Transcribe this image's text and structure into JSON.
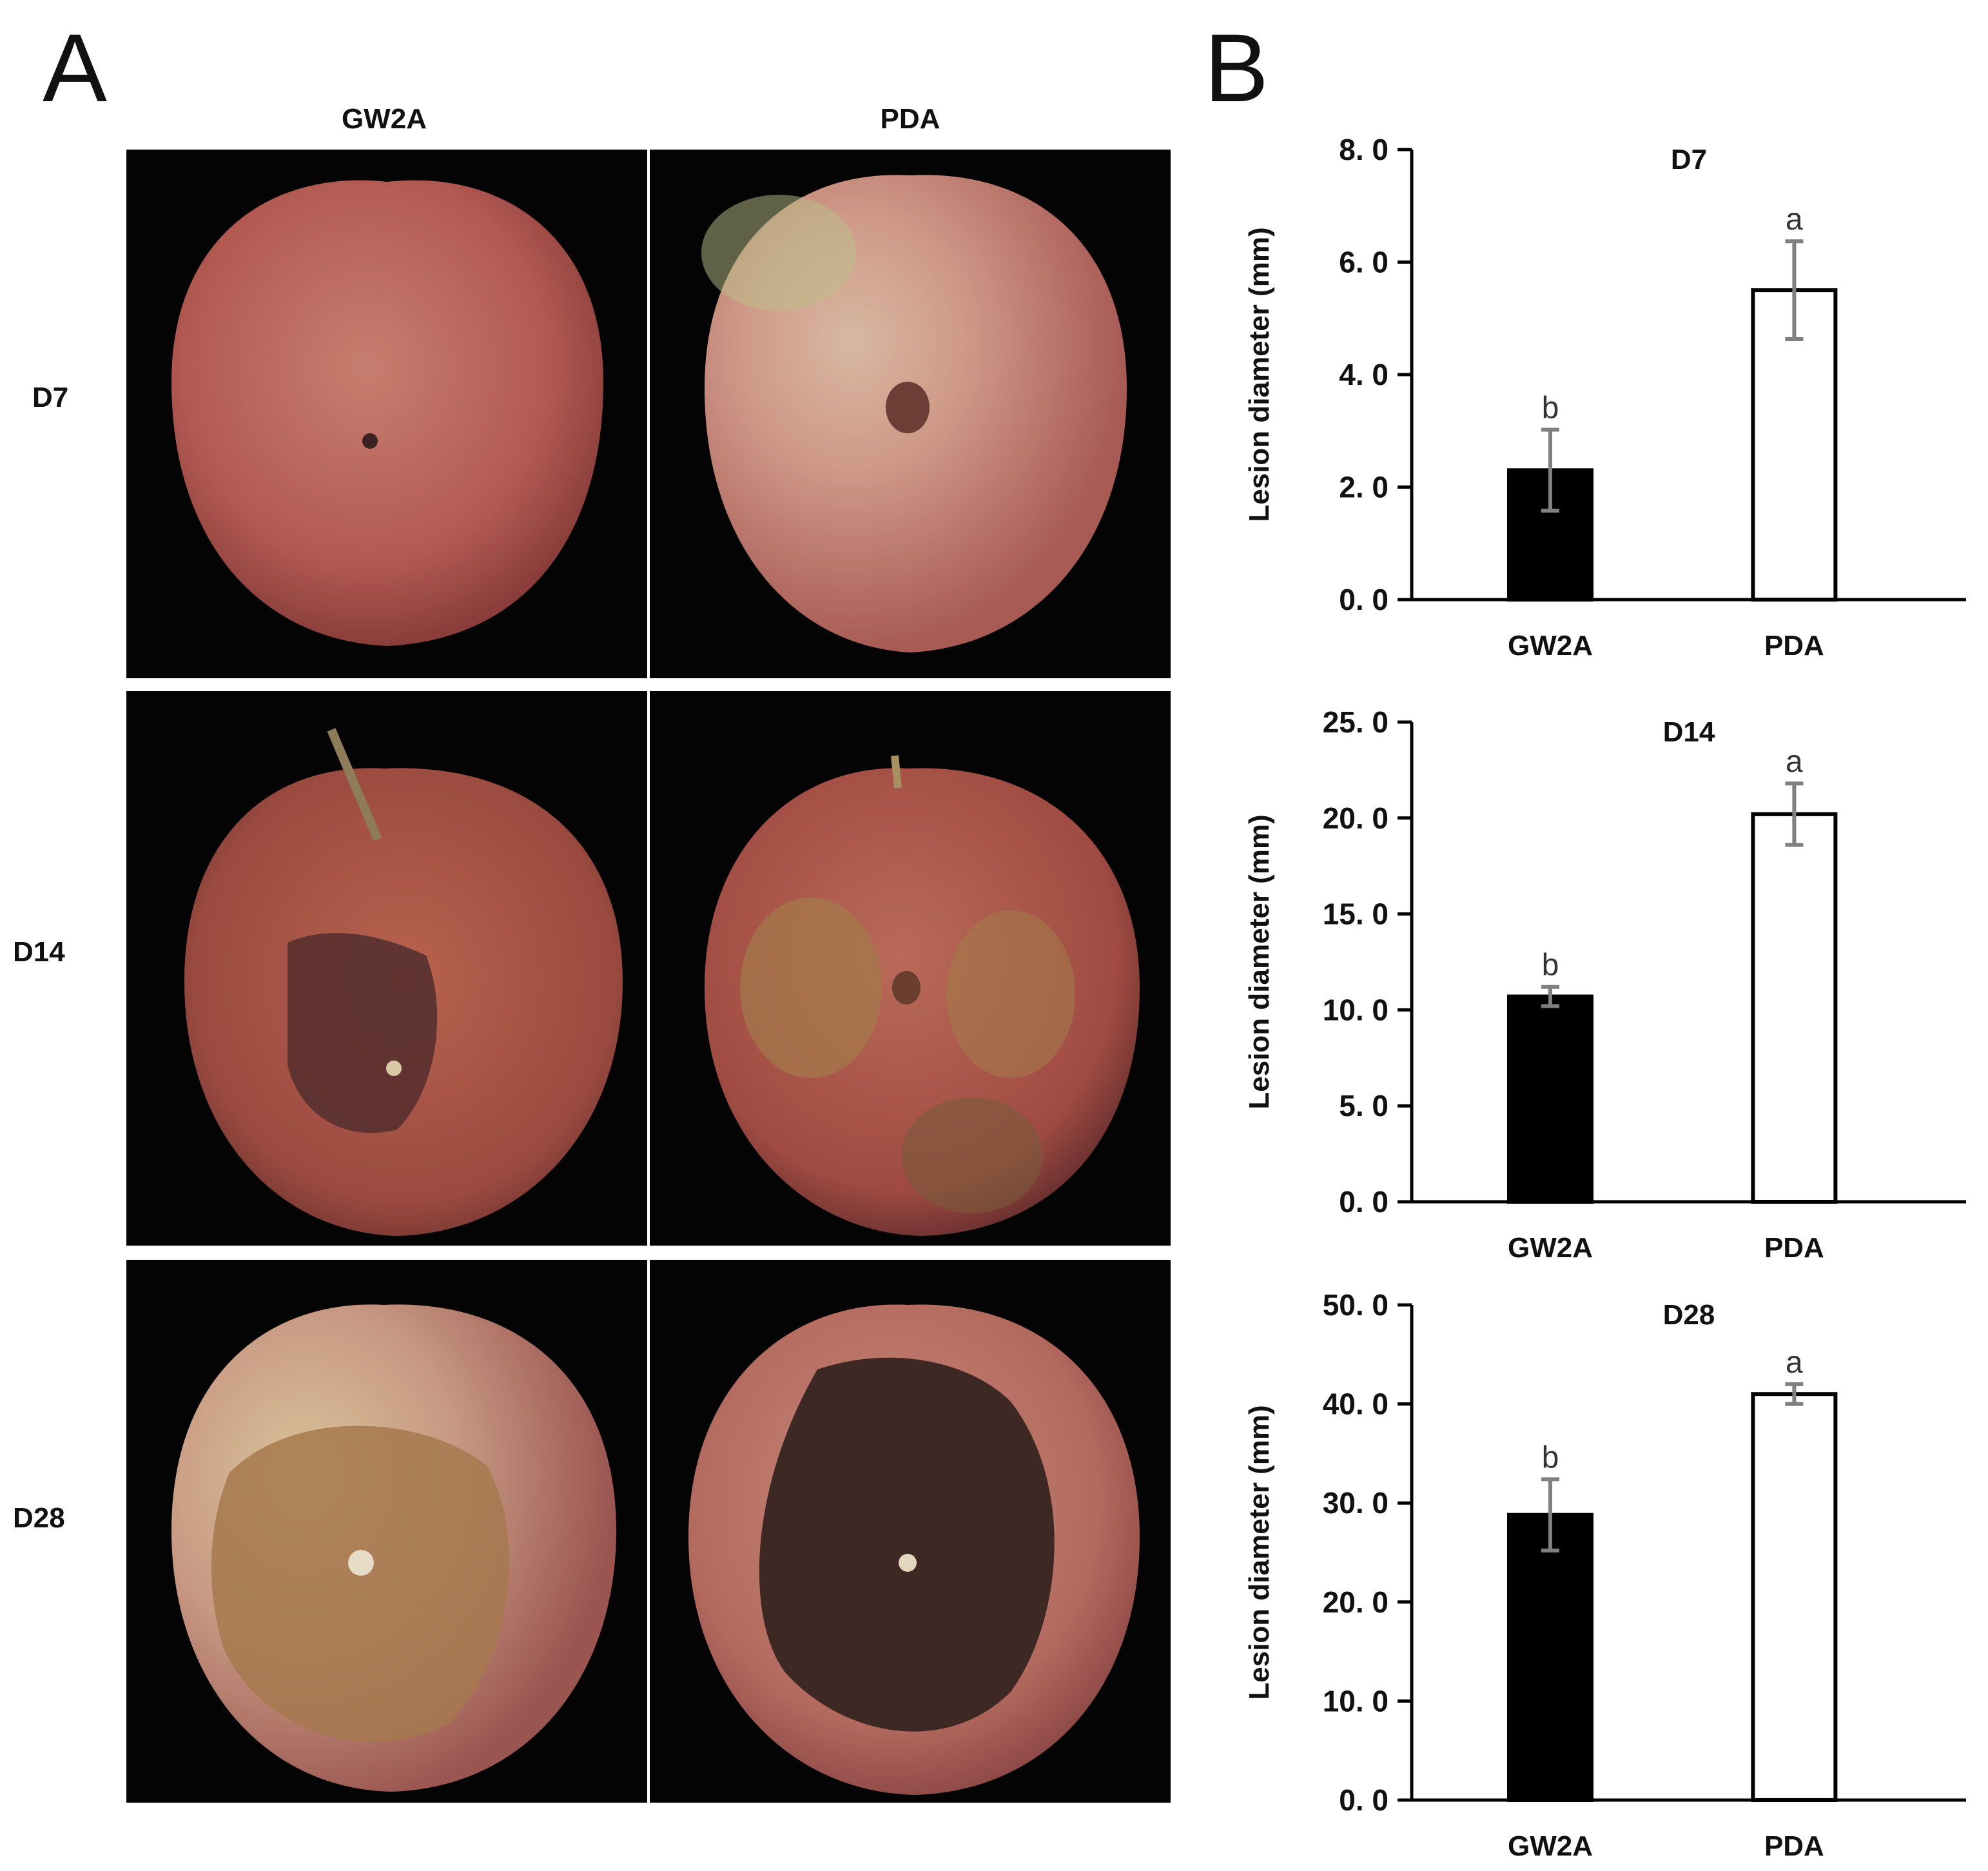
{
  "panels": {
    "a": "A",
    "b": "B"
  },
  "photo_grid": {
    "columns": [
      "GW2A",
      "PDA"
    ],
    "rows": [
      "D7",
      "D14",
      "D28"
    ]
  },
  "colors": {
    "background": "#ffffff",
    "photo_background": "#040404",
    "apple_red": "#b8554f",
    "apple_yellow": "#cfc08a",
    "lesion_light": "#8f6a48",
    "lesion_dark": "#3e2824",
    "bar_gw2a": "#000000",
    "bar_pda": "#ffffff",
    "error_bar": "#808080"
  },
  "chart_data": [
    {
      "type": "bar",
      "title": "D7",
      "ylabel": "Lesion diameter (mm)",
      "categories": [
        "GW2A",
        "PDA"
      ],
      "values": [
        2.3,
        5.5
      ],
      "errors": [
        0.72,
        0.87
      ],
      "significance": [
        "b",
        "a"
      ],
      "ylim": [
        0,
        8
      ],
      "yticks": [
        "0. 0",
        "2. 0",
        "4. 0",
        "6. 0",
        "8. 0"
      ],
      "ytick_values": [
        0,
        2,
        4,
        6,
        8
      ]
    },
    {
      "type": "bar",
      "title": "D14",
      "ylabel": "Lesion diameter (mm)",
      "categories": [
        "GW2A",
        "PDA"
      ],
      "values": [
        10.7,
        20.2
      ],
      "errors": [
        0.5,
        1.6
      ],
      "significance": [
        "b",
        "a"
      ],
      "ylim": [
        0,
        25
      ],
      "yticks": [
        "0. 0",
        "5. 0",
        "10. 0",
        "15. 0",
        "20. 0",
        "25. 0"
      ],
      "ytick_values": [
        0,
        5,
        10,
        15,
        20,
        25
      ]
    },
    {
      "type": "bar",
      "title": "D28",
      "ylabel": "Lesion diameter (mm)",
      "categories": [
        "GW2A",
        "PDA"
      ],
      "values": [
        28.8,
        41.0
      ],
      "errors": [
        3.6,
        1.0
      ],
      "significance": [
        "b",
        "a"
      ],
      "ylim": [
        0,
        50
      ],
      "yticks": [
        "0. 0",
        "10. 0",
        "20. 0",
        "30. 0",
        "40. 0",
        "50. 0"
      ],
      "ytick_values": [
        0,
        10,
        20,
        30,
        40,
        50
      ]
    }
  ]
}
